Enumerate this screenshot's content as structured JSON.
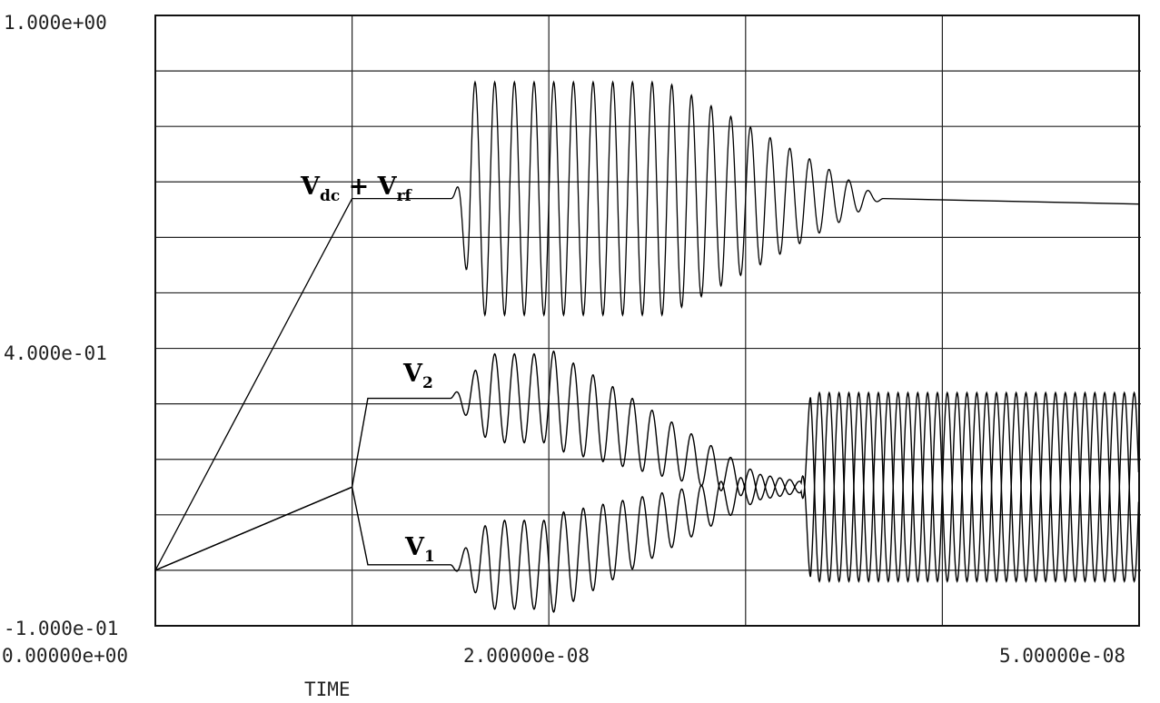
{
  "chart_data": {
    "type": "line",
    "title": "",
    "xlabel": "TIME",
    "ylabel": "",
    "xlim": [
      0,
      5e-08
    ],
    "ylim": [
      -0.1,
      1.0
    ],
    "grid": true,
    "x_tick_labels": [
      "0.00000e+00",
      "2.00000e-08",
      "5.00000e-08"
    ],
    "y_tick_labels": [
      "1.000e+00",
      "4.000e-01",
      "-1.000e-01"
    ],
    "series": [
      {
        "name": "Vdc + Vrf",
        "label": {
          "main1": "V",
          "sub1": "dc",
          "plus": " + ",
          "main2": "V",
          "sub2": "rf"
        },
        "points": [
          [
            0,
            0.0
          ],
          [
            1e-08,
            0.67
          ],
          [
            1.5e-08,
            0.67
          ]
        ],
        "oscillation": {
          "start": 1.5e-08,
          "end": 3.7e-08,
          "center": 0.67,
          "peak_amplitude": 0.21,
          "settle": 0.66
        }
      },
      {
        "name": "V2",
        "label": {
          "main": "V",
          "sub": "2"
        },
        "points": [
          [
            0,
            0.0
          ],
          [
            1e-08,
            0.15
          ],
          [
            1.08e-08,
            0.31
          ],
          [
            1.5e-08,
            0.31
          ]
        ],
        "oscillation": {
          "start": 1.5e-08,
          "end": 5e-08,
          "center_start": 0.31,
          "center_end": 0.15,
          "amplitude": 0.08,
          "final_amplitude": 0.17
        }
      },
      {
        "name": "V1",
        "label": {
          "main": "V",
          "sub": "1"
        },
        "points": [
          [
            0,
            0.0
          ],
          [
            1e-08,
            0.15
          ],
          [
            1.08e-08,
            0.01
          ],
          [
            1.5e-08,
            0.01
          ]
        ],
        "oscillation": {
          "start": 1.5e-08,
          "end": 5e-08,
          "center_start": 0.01,
          "center_end": 0.15,
          "amplitude": 0.08,
          "final_amplitude": 0.17
        }
      }
    ]
  }
}
